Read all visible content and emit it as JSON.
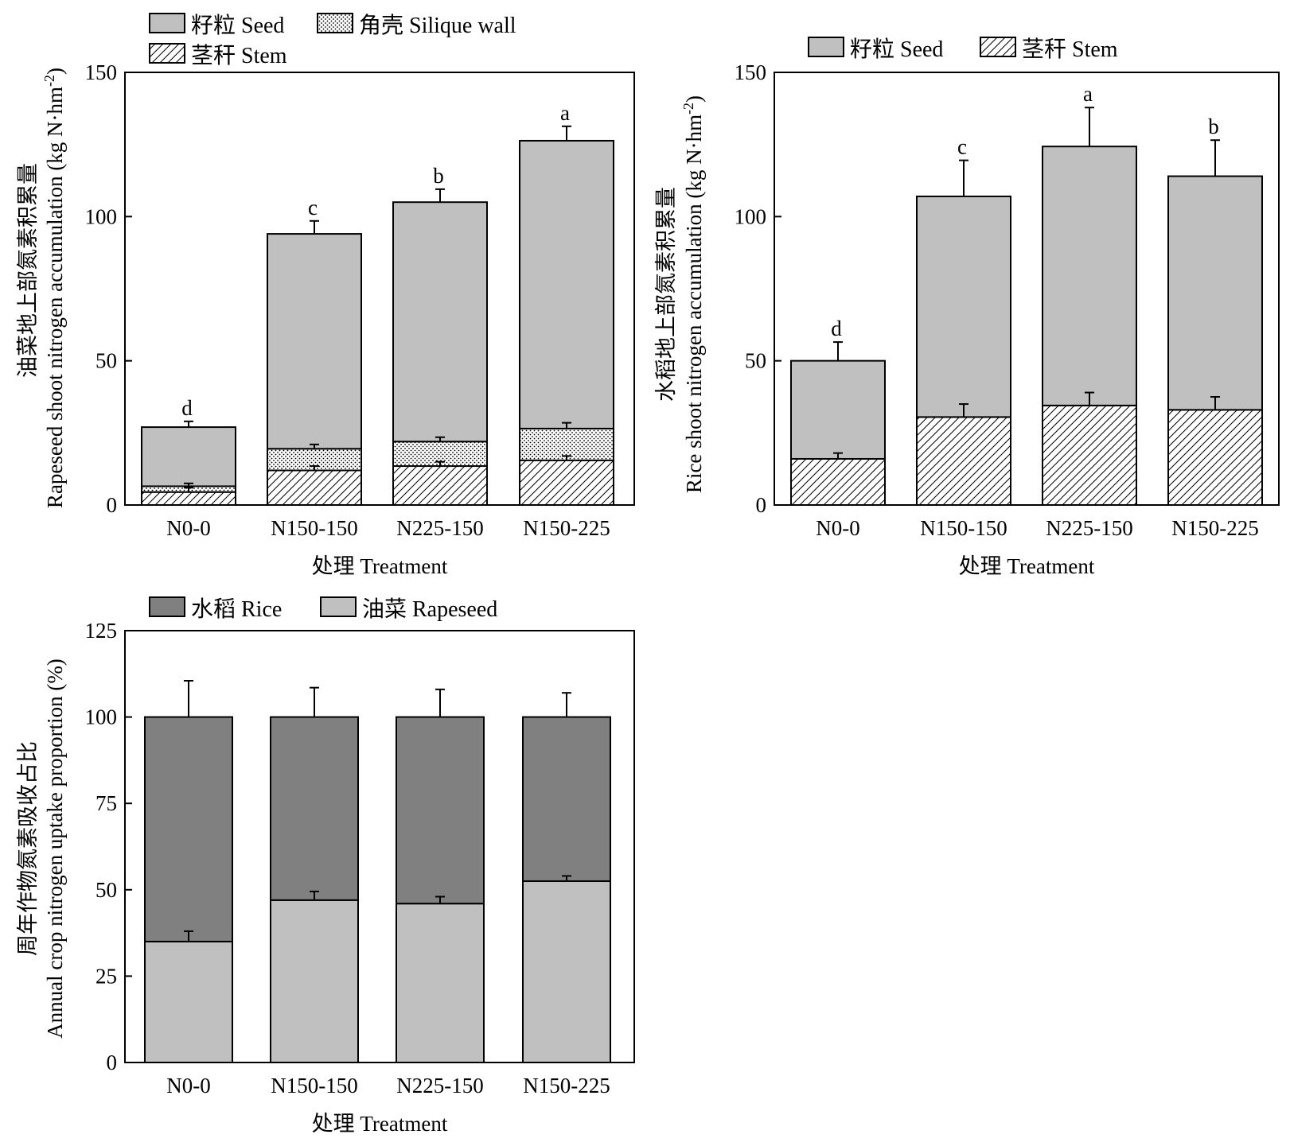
{
  "colors": {
    "seed": "#c0c0c0",
    "rice": "#808080",
    "rapeseed": "#c0c0c0",
    "stroke": "#000000",
    "background": "#ffffff"
  },
  "chart_data": [
    {
      "id": "rapeseed",
      "type": "bar",
      "stacked": true,
      "categories": [
        "N0-0",
        "N150-150",
        "N225-150",
        "N150-225"
      ],
      "series": [
        {
          "name": "茎秆 Stem",
          "pattern": "hatch",
          "values": [
            4.5,
            12.0,
            13.5,
            15.5
          ],
          "errors": [
            1.5,
            1.5,
            1.5,
            1.5
          ]
        },
        {
          "name": "角壳 Silique wall",
          "pattern": "dots",
          "values": [
            2.0,
            7.5,
            8.5,
            11.0
          ],
          "errors": [
            1.0,
            1.5,
            1.5,
            2.0
          ]
        },
        {
          "name": "籽粒 Seed",
          "pattern": "solid",
          "values": [
            20.5,
            74.5,
            83.0,
            99.8
          ],
          "errors": [
            2.0,
            4.5,
            4.5,
            5.0
          ]
        }
      ],
      "significance": [
        "d",
        "c",
        "b",
        "a"
      ],
      "ylim": [
        0,
        150
      ],
      "yticks": [
        0,
        50,
        100,
        150
      ],
      "xlabel": "处理 Treatment",
      "ylabel_cn": "油菜地上部氮素积累量",
      "ylabel_en": "Rapeseed shoot nitrogen accumulation (kg N·hm",
      "ylabel_sup": "-2",
      "ylabel_close": ")",
      "legend": [
        "籽粒 Seed",
        "角壳 Silique wall",
        "茎秆 Stem"
      ],
      "legend_position": "top-left"
    },
    {
      "id": "rice",
      "type": "bar",
      "stacked": true,
      "categories": [
        "N0-0",
        "N150-150",
        "N225-150",
        "N150-225"
      ],
      "series": [
        {
          "name": "茎秆 Stem",
          "pattern": "hatch",
          "values": [
            16.0,
            30.5,
            34.5,
            33.0
          ],
          "errors": [
            2.0,
            4.5,
            4.5,
            4.5
          ]
        },
        {
          "name": "籽粒 Seed",
          "pattern": "solid",
          "values": [
            34.0,
            76.5,
            89.8,
            81.0
          ],
          "errors": [
            6.5,
            12.5,
            13.5,
            12.5
          ]
        }
      ],
      "significance": [
        "d",
        "c",
        "a",
        "b"
      ],
      "ylim": [
        0,
        150
      ],
      "yticks": [
        0,
        50,
        100,
        150
      ],
      "xlabel": "处理 Treatment",
      "ylabel_cn": "水稻地上部氮素积累量",
      "ylabel_en": "Rice shoot nitrogen accumulation (kg N·hm",
      "ylabel_sup": "-2",
      "ylabel_close": ")",
      "legend": [
        "籽粒 Seed",
        "茎秆 Stem"
      ],
      "legend_position": "top"
    },
    {
      "id": "proportion",
      "type": "bar",
      "stacked": true,
      "categories": [
        "N0-0",
        "N150-150",
        "N225-150",
        "N150-225"
      ],
      "series": [
        {
          "name": "油菜 Rapeseed",
          "pattern": "light",
          "values": [
            35.0,
            47.0,
            46.0,
            52.5
          ],
          "errors": [
            3.0,
            2.5,
            2.0,
            1.5
          ]
        },
        {
          "name": "水稻 Rice",
          "pattern": "dark",
          "values": [
            65.0,
            53.0,
            54.0,
            47.5
          ],
          "errors": [
            10.5,
            8.5,
            8.0,
            7.0
          ]
        }
      ],
      "ylim": [
        0,
        125
      ],
      "yticks": [
        0,
        25,
        50,
        75,
        100,
        125
      ],
      "xlabel": "处理 Treatment",
      "ylabel_cn": "周年作物氮素吸收占比",
      "ylabel_en": "Annual crop nitrogen uptake proportion (%)",
      "legend": [
        "水稻 Rice",
        "油菜 Rapeseed"
      ],
      "legend_position": "top-left"
    }
  ]
}
